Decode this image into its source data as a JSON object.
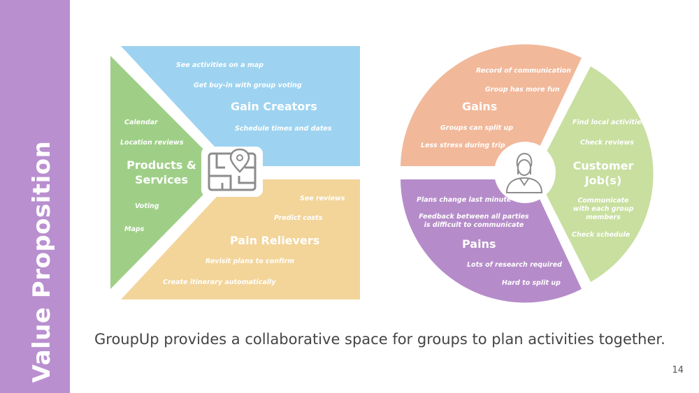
{
  "colors": {
    "sidebar": "#b98fd0",
    "gain_creators": "#9dd3f0",
    "products_services": "#9fcf87",
    "pain_relievers": "#f3d59a",
    "gains": "#f1b89a",
    "pains": "#b58cc9",
    "customer_jobs": "#c8dfa0",
    "icon": "#8c8c8c"
  },
  "sidebar": {
    "title": "Value Proposition"
  },
  "value_map": {
    "gain_creators": {
      "title": "Gain Creators",
      "items": [
        "See activities on a map",
        "Get buy-in with group voting",
        "Schedule times and dates"
      ]
    },
    "products_services": {
      "title_line1": "Products &",
      "title_line2": "Services",
      "items": [
        "Calendar",
        "Location reviews",
        "Voting",
        "Maps"
      ]
    },
    "pain_relievers": {
      "title": "Pain Relievers",
      "items": [
        "See reviews",
        "Predict costs",
        "Revisit plans to confirm",
        "Create itinerary automatically"
      ]
    },
    "center_icon": "map-icon"
  },
  "customer_profile": {
    "gains": {
      "title": "Gains",
      "items": [
        "Record of communication",
        "Group has more fun",
        "Groups can split up",
        "Less stress during trip"
      ]
    },
    "customer_jobs": {
      "title_line1": "Customer",
      "title_line2": "Job(s)",
      "items": [
        "Find local activities",
        "Check reviews"
      ],
      "communicate_lines": [
        "Communicate",
        "with each group",
        "members"
      ],
      "last_item": "Check schedule"
    },
    "pains": {
      "title": "Pains",
      "items": [
        "Plans change last minute"
      ],
      "feedback_lines": [
        "Feedback between all parties",
        "is difficult to communicate"
      ],
      "tail_items": [
        "Lots of research required",
        "Hard to split up"
      ]
    },
    "center_icon": "person-icon"
  },
  "caption": "GroupUp provides a collaborative space for groups to plan activities together.",
  "page_number": "14"
}
